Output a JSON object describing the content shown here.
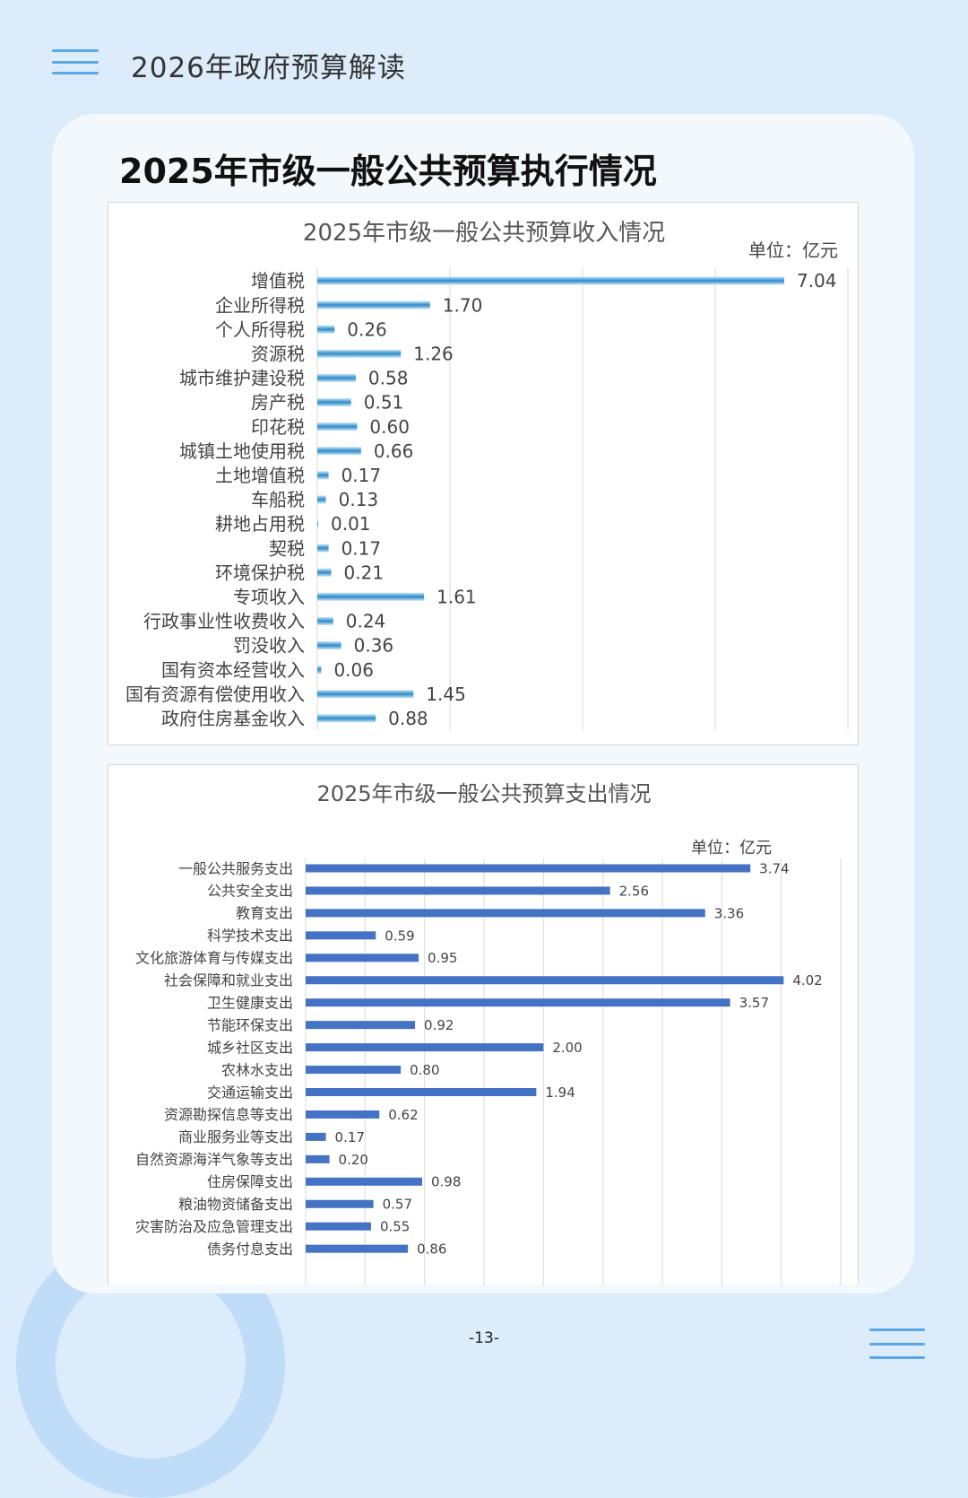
{
  "header": {
    "title": "2026年政府预算解读"
  },
  "section_title": "2025年市级一般公共预算执行情况",
  "page_number": "-13-",
  "colors": {
    "income_bar": "#2f8ac9",
    "income_bar_light": "#c6e6f8",
    "expense_bar": "#4472c4",
    "background": "#dcecfa"
  },
  "icons": {
    "menu_top": "menu-icon",
    "menu_bottom": "menu-icon"
  },
  "chart_data": [
    {
      "type": "bar",
      "orientation": "horizontal",
      "title": "2025年市级一般公共预算收入情况",
      "unit_label": "单位：亿元",
      "xlim": [
        0,
        8
      ],
      "grid": true,
      "categories": [
        "增值税",
        "企业所得税",
        "个人所得税",
        "资源税",
        "城市维护建设税",
        "房产税",
        "印花税",
        "城镇土地使用税",
        "土地增值税",
        "车船税",
        "耕地占用税",
        "契税",
        "环境保护税",
        "专项收入",
        "行政事业性收费收入",
        "罚没收入",
        "国有资本经营收入",
        "国有资源有偿使用收入",
        "政府住房基金收入"
      ],
      "values": [
        7.04,
        1.7,
        0.26,
        1.26,
        0.58,
        0.51,
        0.6,
        0.66,
        0.17,
        0.13,
        0.01,
        0.17,
        0.21,
        1.61,
        0.24,
        0.36,
        0.06,
        1.45,
        0.88
      ],
      "labels": [
        "7.04",
        "1.70",
        "0.26",
        "1.26",
        "0.58",
        "0.51",
        "0.60",
        "0.66",
        "0.17",
        "0.13",
        "0.01",
        "0.17",
        "0.21",
        "1.61",
        "0.24",
        "0.36",
        "0.06",
        "1.45",
        "0.88"
      ]
    },
    {
      "type": "bar",
      "orientation": "horizontal",
      "title": "2025年市级一般公共预算支出情况",
      "unit_label": "单位：亿元",
      "xlim": [
        0,
        4.5
      ],
      "grid": true,
      "categories": [
        "一般公共服务支出",
        "公共安全支出",
        "教育支出",
        "科学技术支出",
        "文化旅游体育与传媒支出",
        "社会保障和就业支出",
        "卫生健康支出",
        "节能环保支出",
        "城乡社区支出",
        "农林水支出",
        "交通运输支出",
        "资源勘探信息等支出",
        "商业服务业等支出",
        "自然资源海洋气象等支出",
        "住房保障支出",
        "粮油物资储备支出",
        "灾害防治及应急管理支出",
        "债务付息支出"
      ],
      "values": [
        3.74,
        2.56,
        3.36,
        0.59,
        0.95,
        4.02,
        3.57,
        0.92,
        2.0,
        0.8,
        1.94,
        0.62,
        0.17,
        0.2,
        0.98,
        0.57,
        0.55,
        0.86
      ],
      "labels": [
        "3.74",
        "2.56",
        "3.36",
        "0.59",
        "0.95",
        "4.02",
        "3.57",
        "0.92",
        "2.00",
        "0.80",
        "1.94",
        "0.62",
        "0.17",
        "0.20",
        "0.98",
        "0.57",
        "0.55",
        "0.86"
      ]
    }
  ]
}
